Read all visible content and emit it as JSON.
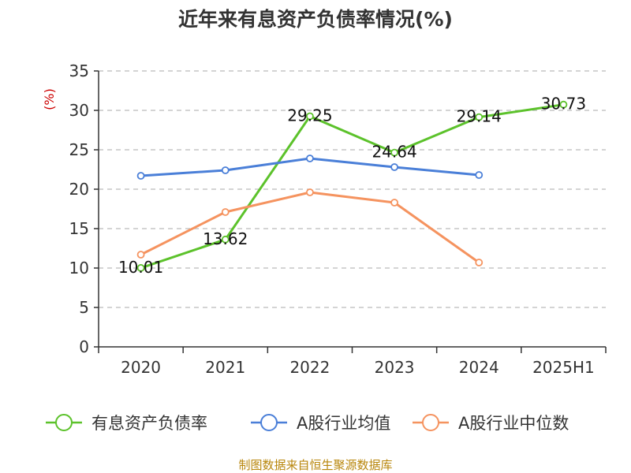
{
  "chart_data": {
    "type": "line",
    "title": "近年来有息资产负债率情况(%)",
    "ylabel": "(%)",
    "categories": [
      "2020",
      "2021",
      "2022",
      "2023",
      "2024",
      "2025H1"
    ],
    "ylim": [
      0,
      35
    ],
    "yticks": [
      0,
      5,
      10,
      15,
      20,
      25,
      30,
      35
    ],
    "grid": true,
    "legend_position": "bottom",
    "series": [
      {
        "name": "有息资产负债率",
        "color": "#5cc22b",
        "values": [
          10.01,
          13.62,
          29.25,
          24.64,
          29.14,
          30.73
        ],
        "labels": [
          "10.01",
          "13.62",
          "29.25",
          "24.64",
          "29.14",
          "30.73"
        ]
      },
      {
        "name": "A股行业均值",
        "color": "#4a7fd8",
        "values": [
          21.7,
          22.4,
          23.9,
          22.8,
          21.8,
          null
        ]
      },
      {
        "name": "A股行业中位数",
        "color": "#f5935f",
        "values": [
          11.7,
          17.1,
          19.6,
          18.3,
          10.7,
          null
        ]
      }
    ]
  },
  "source": "制图数据来自恒生聚源数据库"
}
